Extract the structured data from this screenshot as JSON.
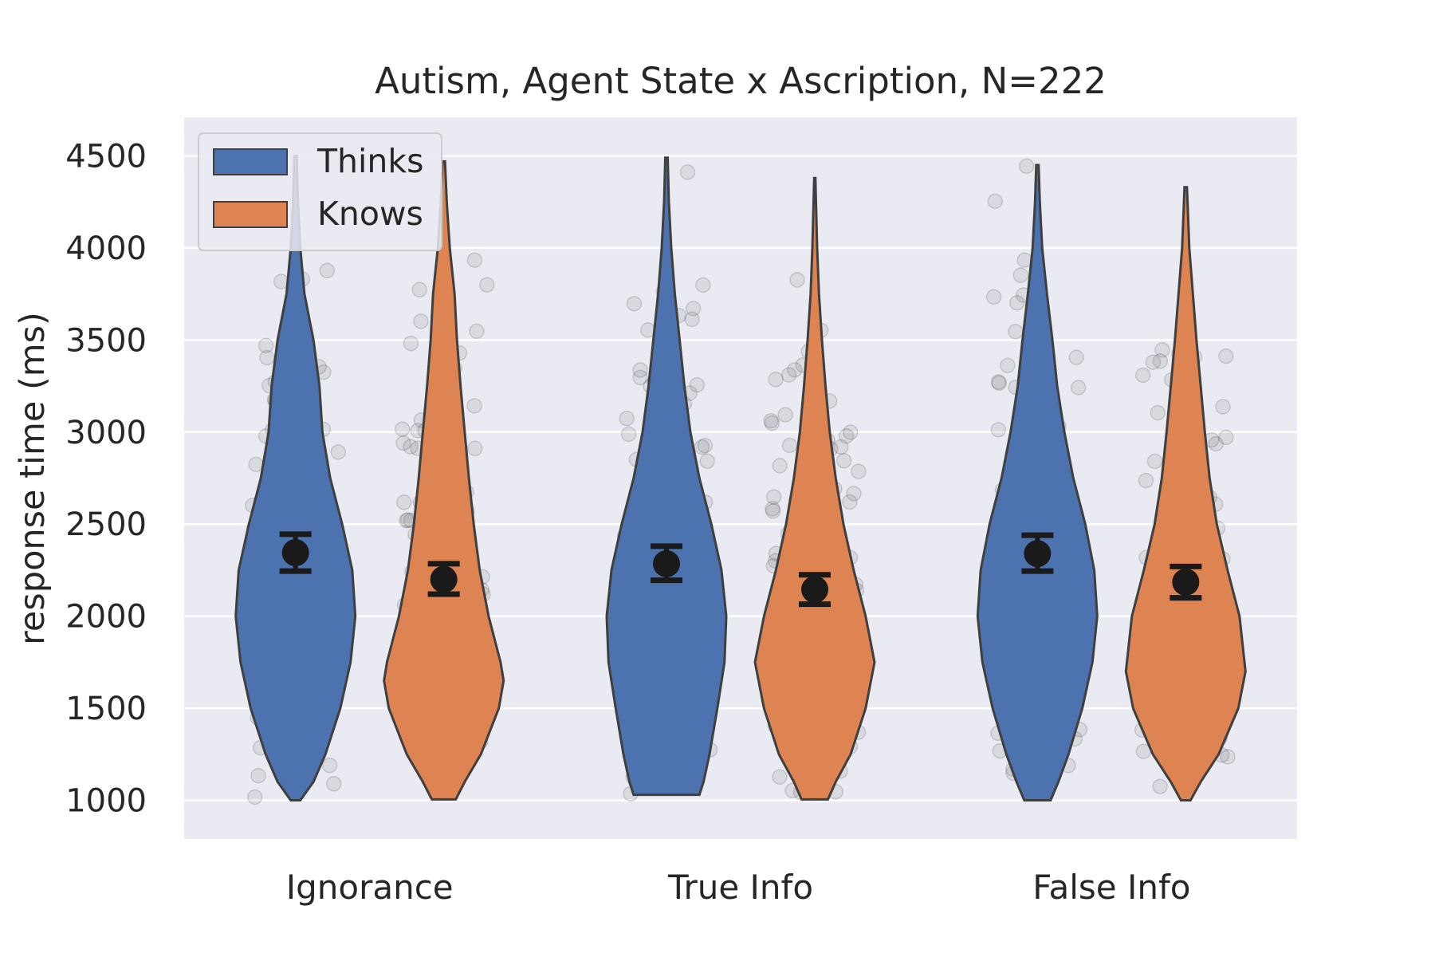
{
  "chart_data": {
    "type": "violin",
    "title": "Autism, Agent State x Ascription,  N=222",
    "xlabel": "",
    "ylabel": "response time (ms)",
    "categories": [
      "Ignorance",
      "True Info",
      "False Info"
    ],
    "ylim": [
      790,
      4710
    ],
    "yticks": [
      1000,
      1500,
      2000,
      2500,
      3000,
      3500,
      4000,
      4500
    ],
    "grid": true,
    "legend_position": "top-left",
    "series": [
      {
        "name": "Thinks",
        "color": "#4c72b0",
        "mean": [
          2345,
          2285,
          2340
        ],
        "ci_low": [
          2245,
          2195,
          2245
        ],
        "ci_high": [
          2445,
          2380,
          2440
        ],
        "min": [
          1000,
          1030,
          1000
        ],
        "max": [
          4500,
          4490,
          4450
        ],
        "density_profile": [
          [
            [
              1000,
              0.08
            ],
            [
              1100,
              0.3
            ],
            [
              1250,
              0.5
            ],
            [
              1500,
              0.75
            ],
            [
              1750,
              0.92
            ],
            [
              2000,
              1.0
            ],
            [
              2250,
              0.95
            ],
            [
              2500,
              0.78
            ],
            [
              2750,
              0.58
            ],
            [
              3000,
              0.45
            ],
            [
              3250,
              0.4
            ],
            [
              3500,
              0.3
            ],
            [
              3750,
              0.15
            ],
            [
              4000,
              0.08
            ],
            [
              4250,
              0.04
            ],
            [
              4500,
              0.02
            ]
          ],
          [
            [
              1030,
              0.55
            ],
            [
              1100,
              0.62
            ],
            [
              1250,
              0.72
            ],
            [
              1500,
              0.85
            ],
            [
              1750,
              0.97
            ],
            [
              2000,
              1.0
            ],
            [
              2250,
              0.92
            ],
            [
              2500,
              0.75
            ],
            [
              2750,
              0.55
            ],
            [
              3000,
              0.4
            ],
            [
              3250,
              0.3
            ],
            [
              3500,
              0.22
            ],
            [
              3750,
              0.14
            ],
            [
              4000,
              0.08
            ],
            [
              4250,
              0.04
            ],
            [
              4490,
              0.02
            ]
          ],
          [
            [
              1000,
              0.22
            ],
            [
              1100,
              0.35
            ],
            [
              1250,
              0.52
            ],
            [
              1500,
              0.75
            ],
            [
              1750,
              0.92
            ],
            [
              2000,
              1.0
            ],
            [
              2250,
              0.95
            ],
            [
              2500,
              0.8
            ],
            [
              2750,
              0.6
            ],
            [
              3000,
              0.45
            ],
            [
              3250,
              0.33
            ],
            [
              3500,
              0.25
            ],
            [
              3750,
              0.16
            ],
            [
              4000,
              0.08
            ],
            [
              4250,
              0.04
            ],
            [
              4450,
              0.02
            ]
          ]
        ]
      },
      {
        "name": "Knows",
        "color": "#dd8452",
        "mean": [
          2200,
          2145,
          2185
        ],
        "ci_low": [
          2120,
          2065,
          2100
        ],
        "ci_high": [
          2285,
          2225,
          2270
        ],
        "min": [
          1005,
          1005,
          1000
        ],
        "max": [
          4470,
          4380,
          4330
        ],
        "density_profile": [
          [
            [
              1005,
              0.2
            ],
            [
              1100,
              0.35
            ],
            [
              1250,
              0.62
            ],
            [
              1500,
              0.92
            ],
            [
              1650,
              1.0
            ],
            [
              1750,
              0.95
            ],
            [
              2000,
              0.75
            ],
            [
              2250,
              0.6
            ],
            [
              2500,
              0.5
            ],
            [
              2750,
              0.42
            ],
            [
              3000,
              0.35
            ],
            [
              3250,
              0.28
            ],
            [
              3500,
              0.22
            ],
            [
              3750,
              0.18
            ],
            [
              4000,
              0.1
            ],
            [
              4250,
              0.05
            ],
            [
              4470,
              0.02
            ]
          ],
          [
            [
              1005,
              0.22
            ],
            [
              1100,
              0.35
            ],
            [
              1250,
              0.6
            ],
            [
              1500,
              0.85
            ],
            [
              1750,
              1.0
            ],
            [
              2000,
              0.85
            ],
            [
              2250,
              0.65
            ],
            [
              2500,
              0.48
            ],
            [
              2750,
              0.35
            ],
            [
              3000,
              0.25
            ],
            [
              3250,
              0.18
            ],
            [
              3500,
              0.12
            ],
            [
              3750,
              0.07
            ],
            [
              4000,
              0.04
            ],
            [
              4250,
              0.02
            ],
            [
              4380,
              0.01
            ]
          ],
          [
            [
              1000,
              0.08
            ],
            [
              1100,
              0.25
            ],
            [
              1250,
              0.55
            ],
            [
              1500,
              0.88
            ],
            [
              1700,
              1.0
            ],
            [
              2000,
              0.9
            ],
            [
              2250,
              0.7
            ],
            [
              2500,
              0.52
            ],
            [
              2750,
              0.4
            ],
            [
              3000,
              0.32
            ],
            [
              3250,
              0.25
            ],
            [
              3500,
              0.18
            ],
            [
              3750,
              0.12
            ],
            [
              4000,
              0.06
            ],
            [
              4250,
              0.03
            ],
            [
              4330,
              0.02
            ]
          ]
        ]
      }
    ]
  }
}
